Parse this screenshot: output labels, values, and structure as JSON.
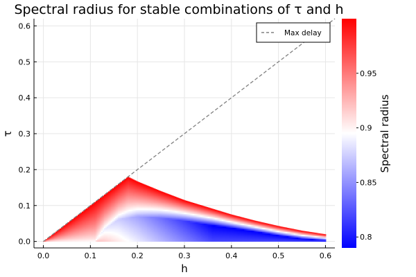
{
  "chart_data": {
    "type": "heatmap",
    "title": "Spectral radius for stable combinations of τ and h",
    "xlabel": "h",
    "ylabel": "τ",
    "xlim": [
      -0.02,
      0.62
    ],
    "ylim": [
      -0.018,
      0.62
    ],
    "xticks": [
      0.0,
      0.1,
      0.2,
      0.3,
      0.4,
      0.5,
      0.6
    ],
    "xtick_labels": [
      "0.0",
      "0.1",
      "0.2",
      "0.3",
      "0.4",
      "0.5",
      "0.6"
    ],
    "yticks": [
      0.0,
      0.1,
      0.2,
      0.3,
      0.4,
      0.5,
      0.6
    ],
    "ytick_labels": [
      "0.0",
      "0.1",
      "0.2",
      "0.3",
      "0.4",
      "0.5",
      "0.6"
    ],
    "grid": true,
    "stable_region": {
      "h_range": [
        0.0,
        0.6
      ],
      "peak": {
        "h": 0.18,
        "tau": 0.18
      },
      "upper_boundary": [
        {
          "h": 0.0,
          "tau": 0.0
        },
        {
          "h": 0.18,
          "tau": 0.18
        },
        {
          "h": 0.2,
          "tau": 0.167
        },
        {
          "h": 0.25,
          "tau": 0.14
        },
        {
          "h": 0.3,
          "tau": 0.115
        },
        {
          "h": 0.35,
          "tau": 0.095
        },
        {
          "h": 0.4,
          "tau": 0.075
        },
        {
          "h": 0.45,
          "tau": 0.058
        },
        {
          "h": 0.5,
          "tau": 0.043
        },
        {
          "h": 0.55,
          "tau": 0.03
        },
        {
          "h": 0.6,
          "tau": 0.02
        }
      ],
      "minimum_radius_contour": [
        {
          "h": 0.11,
          "tau": 0.0
        },
        {
          "h": 0.13,
          "tau": 0.035
        },
        {
          "h": 0.16,
          "tau": 0.062
        },
        {
          "h": 0.2,
          "tau": 0.07
        },
        {
          "h": 0.25,
          "tau": 0.066
        },
        {
          "h": 0.3,
          "tau": 0.058
        },
        {
          "h": 0.35,
          "tau": 0.047
        },
        {
          "h": 0.4,
          "tau": 0.038
        },
        {
          "h": 0.45,
          "tau": 0.028
        },
        {
          "h": 0.5,
          "tau": 0.017
        },
        {
          "h": 0.55,
          "tau": 0.008
        },
        {
          "h": 0.6,
          "tau": 0.003
        }
      ]
    },
    "series": [
      {
        "name": "Max delay",
        "type": "line",
        "style": "dashed",
        "color": "#808080",
        "x": [
          0.0,
          0.62
        ],
        "y": [
          0.0,
          0.62
        ]
      }
    ],
    "legend": {
      "position": "top-right"
    },
    "colorbar": {
      "label": "Spectral radius",
      "range": [
        0.79,
        1.0
      ],
      "ticks": [
        0.8,
        0.85,
        0.9,
        0.95
      ],
      "tick_labels": [
        "0.8",
        "0.85",
        "0.9",
        "0.95"
      ],
      "colormap": [
        "#0000ff",
        "#ffffff",
        "#ff0000"
      ],
      "center": 0.895
    }
  }
}
